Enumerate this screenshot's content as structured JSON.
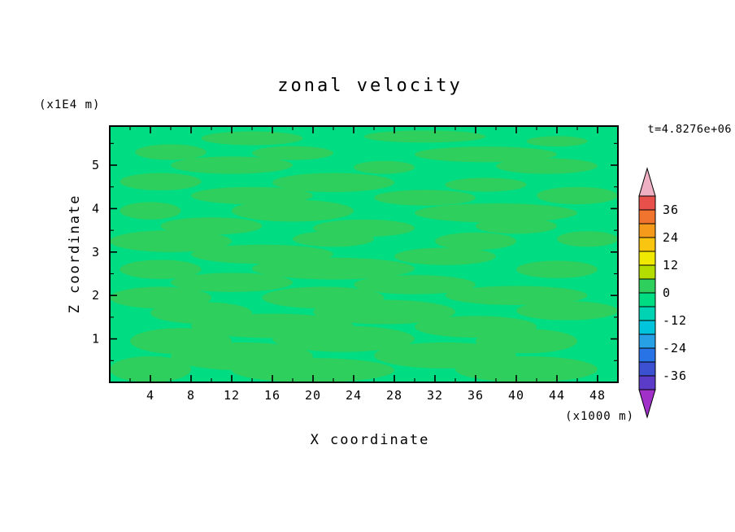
{
  "title": "zonal velocity",
  "time_label": "t=4.8276e+06",
  "y_axis": {
    "unit_label": "(x1E4 m)",
    "title": "Z coordinate",
    "ticks": [
      1,
      2,
      3,
      4,
      5
    ]
  },
  "x_axis": {
    "unit_label": "(x1000 m)",
    "title": "X coordinate",
    "ticks": [
      4,
      8,
      12,
      16,
      20,
      24,
      28,
      32,
      36,
      40,
      44,
      48
    ]
  },
  "colorbar": {
    "labels": [
      "36",
      "24",
      "12",
      "0",
      "-12",
      "-24",
      "-36"
    ],
    "arrow_top_color": "#f0b0c3",
    "arrow_bottom_color": "#a030c8",
    "segments": [
      {
        "range": [
          36,
          42
        ],
        "color": "#e8504b"
      },
      {
        "range": [
          30,
          36
        ],
        "color": "#f0742d"
      },
      {
        "range": [
          24,
          30
        ],
        "color": "#f59a1b"
      },
      {
        "range": [
          18,
          24
        ],
        "color": "#fac511"
      },
      {
        "range": [
          12,
          18
        ],
        "color": "#f0e800"
      },
      {
        "range": [
          6,
          12
        ],
        "color": "#b4dc00"
      },
      {
        "range": [
          0,
          6
        ],
        "color": "#2fcf5e"
      },
      {
        "range": [
          -6,
          0
        ],
        "color": "#00dc82"
      },
      {
        "range": [
          -12,
          -6
        ],
        "color": "#00d2b4"
      },
      {
        "range": [
          -18,
          -12
        ],
        "color": "#00c3dc"
      },
      {
        "range": [
          -24,
          -18
        ],
        "color": "#28a0e6"
      },
      {
        "range": [
          -30,
          -24
        ],
        "color": "#2874e6"
      },
      {
        "range": [
          -36,
          -30
        ],
        "color": "#3c50d2"
      },
      {
        "range": [
          -42,
          -36
        ],
        "color": "#5a3cc8"
      }
    ]
  },
  "chart_data": {
    "type": "heatmap",
    "subtype": "filled-contour",
    "title": "zonal velocity",
    "xlabel": "X coordinate",
    "ylabel": "Z coordinate",
    "x_unit": "(x1000 m)",
    "y_unit": "(x1E4 m)",
    "xlim": [
      0,
      50
    ],
    "ylim": [
      0,
      5.9
    ],
    "x_ticks": [
      4,
      8,
      12,
      16,
      20,
      24,
      28,
      32,
      36,
      40,
      44,
      48
    ],
    "y_ticks": [
      1,
      2,
      3,
      4,
      5
    ],
    "x_minor_step": 2,
    "y_minor_step": 0.5,
    "time_annotation": "t=4.8276e+06",
    "contour_interval": 6,
    "colorbar_range": [
      -42,
      42
    ],
    "colorbar_labels": [
      36,
      24,
      12,
      0,
      -12,
      -24,
      -36
    ],
    "field_note": "field values near 0: base bin (-6,0] spring green with streaky patches in bin (0,6] green",
    "base_color": "#00dc82",
    "patch_color": "#2fcf5e",
    "patches": [
      [
        14,
        5.62,
        5,
        0.16
      ],
      [
        31,
        5.66,
        6,
        0.14
      ],
      [
        44,
        5.55,
        3,
        0.12
      ],
      [
        6,
        5.3,
        3.5,
        0.18
      ],
      [
        18,
        5.28,
        4,
        0.16
      ],
      [
        37,
        5.25,
        7,
        0.18
      ],
      [
        12,
        5.0,
        6,
        0.2
      ],
      [
        27,
        4.95,
        3,
        0.15
      ],
      [
        43,
        4.98,
        5,
        0.18
      ],
      [
        5,
        4.62,
        4,
        0.2
      ],
      [
        22,
        4.6,
        6,
        0.22
      ],
      [
        37,
        4.55,
        4,
        0.16
      ],
      [
        14,
        4.3,
        6,
        0.2
      ],
      [
        31,
        4.25,
        5,
        0.18
      ],
      [
        46,
        4.3,
        4,
        0.2
      ],
      [
        4,
        3.95,
        3,
        0.2
      ],
      [
        18,
        3.95,
        6,
        0.25
      ],
      [
        38,
        3.9,
        8,
        0.22
      ],
      [
        10,
        3.6,
        5,
        0.2
      ],
      [
        25,
        3.55,
        5,
        0.2
      ],
      [
        40,
        3.6,
        4,
        0.18
      ],
      [
        6,
        3.25,
        6,
        0.25
      ],
      [
        22,
        3.3,
        4,
        0.18
      ],
      [
        36,
        3.25,
        4,
        0.2
      ],
      [
        47,
        3.3,
        3,
        0.18
      ],
      [
        15,
        2.95,
        7,
        0.22
      ],
      [
        33,
        2.9,
        5,
        0.2
      ],
      [
        5,
        2.6,
        4,
        0.22
      ],
      [
        22,
        2.62,
        8,
        0.25
      ],
      [
        44,
        2.6,
        4,
        0.2
      ],
      [
        12,
        2.3,
        6,
        0.22
      ],
      [
        30,
        2.25,
        6,
        0.22
      ],
      [
        5,
        1.95,
        5,
        0.25
      ],
      [
        21,
        1.95,
        6,
        0.25
      ],
      [
        40,
        2.0,
        7,
        0.22
      ],
      [
        9,
        1.6,
        5,
        0.25
      ],
      [
        27,
        1.62,
        7,
        0.28
      ],
      [
        45,
        1.65,
        5,
        0.22
      ],
      [
        16,
        1.3,
        8,
        0.28
      ],
      [
        36,
        1.28,
        6,
        0.25
      ],
      [
        7,
        0.95,
        5,
        0.3
      ],
      [
        23,
        1.0,
        7,
        0.3
      ],
      [
        41,
        0.95,
        5,
        0.28
      ],
      [
        13,
        0.6,
        7,
        0.32
      ],
      [
        33,
        0.62,
        7,
        0.3
      ],
      [
        4,
        0.3,
        4,
        0.3
      ],
      [
        20,
        0.28,
        8,
        0.28
      ],
      [
        41,
        0.3,
        7,
        0.3
      ]
    ]
  }
}
